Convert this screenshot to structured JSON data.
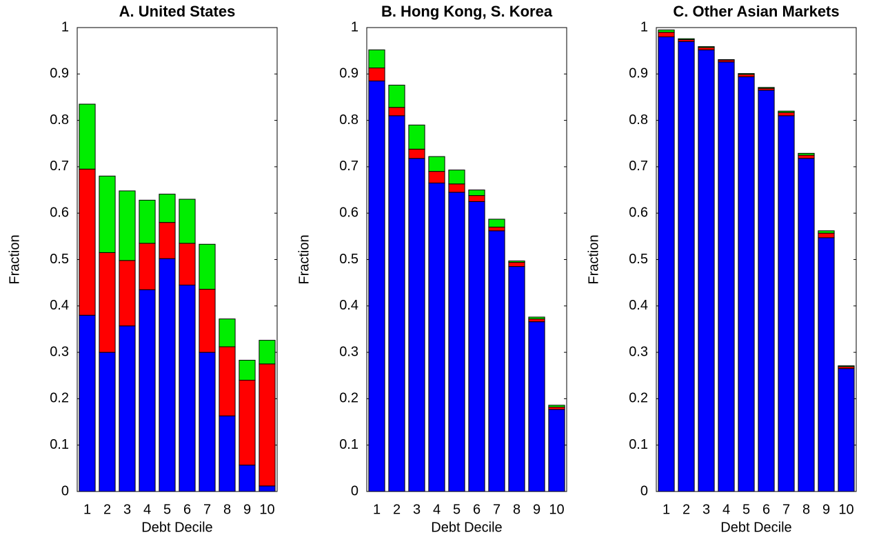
{
  "chart_data": [
    {
      "type": "bar",
      "stacked": true,
      "title": "A.  United States",
      "xlabel": "Debt Decile",
      "ylabel": "Fraction",
      "categories": [
        "1",
        "2",
        "3",
        "4",
        "5",
        "6",
        "7",
        "8",
        "9",
        "10"
      ],
      "series": [
        {
          "color": "#0000ff",
          "values": [
            0.38,
            0.3,
            0.357,
            0.435,
            0.502,
            0.445,
            0.3,
            0.163,
            0.057,
            0.012
          ]
        },
        {
          "color": "#ff0000",
          "values": [
            0.315,
            0.215,
            0.141,
            0.1,
            0.078,
            0.09,
            0.136,
            0.149,
            0.183,
            0.263
          ]
        },
        {
          "color": "#00ee00",
          "values": [
            0.14,
            0.165,
            0.15,
            0.093,
            0.061,
            0.095,
            0.097,
            0.06,
            0.043,
            0.051
          ]
        }
      ],
      "ylim": [
        0,
        1
      ],
      "yticks": [
        0,
        0.1,
        0.2,
        0.3,
        0.4,
        0.5,
        0.6,
        0.7,
        0.8,
        0.9,
        1
      ]
    },
    {
      "type": "bar",
      "stacked": true,
      "title": "B.  Hong Kong, S. Korea",
      "xlabel": "Debt Decile",
      "ylabel": "Fraction",
      "categories": [
        "1",
        "2",
        "3",
        "4",
        "5",
        "6",
        "7",
        "8",
        "9",
        "10"
      ],
      "series": [
        {
          "color": "#0000ff",
          "values": [
            0.885,
            0.81,
            0.718,
            0.665,
            0.645,
            0.625,
            0.562,
            0.485,
            0.366,
            0.177
          ]
        },
        {
          "color": "#ff0000",
          "values": [
            0.028,
            0.018,
            0.02,
            0.025,
            0.018,
            0.013,
            0.008,
            0.009,
            0.006,
            0.005
          ]
        },
        {
          "color": "#00ee00",
          "values": [
            0.039,
            0.048,
            0.052,
            0.032,
            0.03,
            0.012,
            0.017,
            0.003,
            0.004,
            0.004
          ]
        }
      ],
      "ylim": [
        0,
        1
      ],
      "yticks": [
        0,
        0.1,
        0.2,
        0.3,
        0.4,
        0.5,
        0.6,
        0.7,
        0.8,
        0.9,
        1
      ]
    },
    {
      "type": "bar",
      "stacked": true,
      "title": "C.  Other Asian Markets",
      "xlabel": "Debt Decile",
      "ylabel": "Fraction",
      "categories": [
        "1",
        "2",
        "3",
        "4",
        "5",
        "6",
        "7",
        "8",
        "9",
        "10"
      ],
      "series": [
        {
          "color": "#0000ff",
          "values": [
            0.98,
            0.97,
            0.952,
            0.926,
            0.894,
            0.865,
            0.81,
            0.718,
            0.547,
            0.265
          ]
        },
        {
          "color": "#ff0000",
          "values": [
            0.01,
            0.004,
            0.005,
            0.004,
            0.005,
            0.004,
            0.007,
            0.007,
            0.01,
            0.004
          ]
        },
        {
          "color": "#00ee00",
          "values": [
            0.005,
            0.002,
            0.002,
            0.001,
            0.002,
            0.002,
            0.003,
            0.004,
            0.005,
            0.002
          ]
        }
      ],
      "ylim": [
        0,
        1
      ],
      "yticks": [
        0,
        0.1,
        0.2,
        0.3,
        0.4,
        0.5,
        0.6,
        0.7,
        0.8,
        0.9,
        1
      ]
    }
  ]
}
